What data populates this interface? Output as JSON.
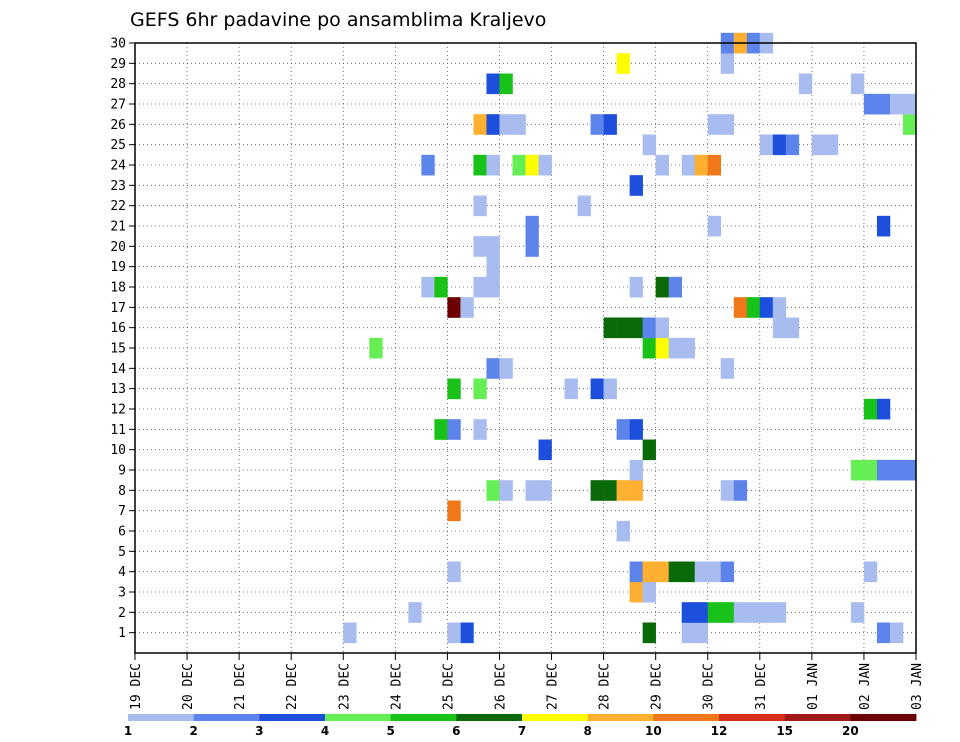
{
  "chart_data": {
    "type": "heatmap",
    "title": "GEFS 6hr padavine po ansamblima Kraljevo",
    "x_tick_labels": [
      "19 DEC",
      "20 DEC",
      "21 DEC",
      "22 DEC",
      "23 DEC",
      "24 DEC",
      "25 DEC",
      "26 DEC",
      "27 DEC",
      "28 DEC",
      "29 DEC",
      "30 DEC",
      "31 DEC",
      "01 JAN",
      "02 JAN",
      "03 JAN"
    ],
    "y_tick_labels": [
      "1",
      "2",
      "3",
      "4",
      "5",
      "6",
      "7",
      "8",
      "9",
      "10",
      "11",
      "12",
      "13",
      "14",
      "15",
      "16",
      "17",
      "18",
      "19",
      "20",
      "21",
      "22",
      "23",
      "24",
      "25",
      "26",
      "27",
      "28",
      "29",
      "30"
    ],
    "x_range_days": [
      0,
      15
    ],
    "y_range": [
      0,
      30
    ],
    "grid": "dotted",
    "legend": {
      "placement": "bottom",
      "labels": [
        "1",
        "2",
        "3",
        "4",
        "5",
        "6",
        "7",
        "8",
        "10",
        "12",
        "15",
        "20"
      ],
      "colors": [
        "#a8bcf0",
        "#5c84ea",
        "#1c4fdc",
        "#66ee55",
        "#18c218",
        "#0a6a0a",
        "#ffff00",
        "#ffb030",
        "#f07818",
        "#d83018",
        "#a01818",
        "#6c0000"
      ]
    },
    "cell_width_days": 0.25,
    "cells_note": "each cell: [start_day_from_19DEC_00UTC, member, color_index] where color_index refers to legend.colors",
    "cells": [
      [
        6.25,
        0,
        2
      ],
      [
        9.75,
        0,
        5
      ],
      [
        10.5,
        0,
        0
      ],
      [
        10.75,
        0,
        0
      ],
      [
        14.25,
        0,
        1
      ],
      [
        14.5,
        0,
        0
      ],
      [
        4.0,
        0,
        0
      ],
      [
        6.0,
        0,
        0
      ],
      [
        5.25,
        1,
        0
      ],
      [
        10.5,
        1,
        2
      ],
      [
        10.75,
        1,
        2
      ],
      [
        11.0,
        1,
        4
      ],
      [
        11.25,
        1,
        4
      ],
      [
        11.5,
        1,
        0
      ],
      [
        11.75,
        1,
        0
      ],
      [
        12.0,
        1,
        0
      ],
      [
        12.25,
        1,
        0
      ],
      [
        13.75,
        1,
        0
      ],
      [
        9.5,
        2,
        7
      ],
      [
        9.75,
        2,
        0
      ],
      [
        6.0,
        3,
        0
      ],
      [
        9.5,
        3,
        1
      ],
      [
        9.75,
        3,
        7
      ],
      [
        10.0,
        3,
        7
      ],
      [
        10.25,
        3,
        5
      ],
      [
        10.5,
        3,
        5
      ],
      [
        10.75,
        3,
        0
      ],
      [
        11.0,
        3,
        0
      ],
      [
        11.25,
        3,
        1
      ],
      [
        14.0,
        3,
        0
      ],
      [
        9.25,
        5,
        0
      ],
      [
        6.0,
        6,
        8
      ],
      [
        6.75,
        7,
        3
      ],
      [
        7.0,
        7,
        0
      ],
      [
        7.5,
        7,
        0
      ],
      [
        7.75,
        7,
        0
      ],
      [
        8.75,
        7,
        5
      ],
      [
        9.0,
        7,
        5
      ],
      [
        9.25,
        7,
        7
      ],
      [
        9.5,
        7,
        7
      ],
      [
        11.25,
        7,
        0
      ],
      [
        11.5,
        7,
        1
      ],
      [
        9.5,
        8,
        0
      ],
      [
        13.75,
        8,
        3
      ],
      [
        14.0,
        8,
        3
      ],
      [
        14.25,
        8,
        1
      ],
      [
        14.5,
        8,
        1
      ],
      [
        14.75,
        8,
        1
      ],
      [
        7.75,
        9,
        2
      ],
      [
        9.75,
        9,
        5
      ],
      [
        5.75,
        10,
        4
      ],
      [
        6.0,
        10,
        1
      ],
      [
        6.5,
        10,
        0
      ],
      [
        9.25,
        10,
        1
      ],
      [
        9.5,
        10,
        2
      ],
      [
        14.0,
        11,
        4
      ],
      [
        14.25,
        11,
        2
      ],
      [
        6.0,
        12,
        4
      ],
      [
        6.5,
        12,
        3
      ],
      [
        8.25,
        12,
        0
      ],
      [
        8.75,
        12,
        2
      ],
      [
        9.0,
        12,
        0
      ],
      [
        6.75,
        13,
        1
      ],
      [
        7.0,
        13,
        0
      ],
      [
        11.25,
        13,
        0
      ],
      [
        4.5,
        14,
        3
      ],
      [
        9.75,
        14,
        4
      ],
      [
        10.0,
        14,
        6
      ],
      [
        10.25,
        14,
        0
      ],
      [
        10.5,
        14,
        0
      ],
      [
        9.0,
        15,
        5
      ],
      [
        9.25,
        15,
        5
      ],
      [
        9.5,
        15,
        5
      ],
      [
        9.75,
        15,
        1
      ],
      [
        10.0,
        15,
        0
      ],
      [
        12.25,
        15,
        0
      ],
      [
        12.5,
        15,
        0
      ],
      [
        6.0,
        16,
        11
      ],
      [
        6.25,
        16,
        0
      ],
      [
        11.5,
        16,
        8
      ],
      [
        11.75,
        16,
        4
      ],
      [
        12.0,
        16,
        2
      ],
      [
        12.25,
        16,
        0
      ],
      [
        5.5,
        17,
        0
      ],
      [
        5.75,
        17,
        4
      ],
      [
        6.5,
        17,
        0
      ],
      [
        6.75,
        17,
        0
      ],
      [
        9.5,
        17,
        0
      ],
      [
        10.0,
        17,
        5
      ],
      [
        10.25,
        17,
        1
      ],
      [
        6.75,
        18,
        0
      ],
      [
        6.5,
        19,
        0
      ],
      [
        6.75,
        19,
        0
      ],
      [
        7.5,
        19,
        1
      ],
      [
        7.5,
        20,
        1
      ],
      [
        11.0,
        20,
        0
      ],
      [
        14.25,
        20,
        2
      ],
      [
        6.5,
        21,
        0
      ],
      [
        8.5,
        21,
        0
      ],
      [
        9.5,
        22,
        2
      ],
      [
        5.5,
        23,
        1
      ],
      [
        6.5,
        23,
        4
      ],
      [
        6.75,
        23,
        0
      ],
      [
        7.25,
        23,
        3
      ],
      [
        7.5,
        23,
        6
      ],
      [
        7.75,
        23,
        0
      ],
      [
        10.0,
        23,
        0
      ],
      [
        10.5,
        23,
        0
      ],
      [
        10.75,
        23,
        7
      ],
      [
        11.0,
        23,
        8
      ],
      [
        9.75,
        24,
        0
      ],
      [
        12.0,
        24,
        0
      ],
      [
        12.25,
        24,
        2
      ],
      [
        12.5,
        24,
        1
      ],
      [
        13.0,
        24,
        0
      ],
      [
        13.25,
        24,
        0
      ],
      [
        6.5,
        25,
        7
      ],
      [
        6.75,
        25,
        2
      ],
      [
        7.0,
        25,
        0
      ],
      [
        7.25,
        25,
        0
      ],
      [
        8.75,
        25,
        1
      ],
      [
        9.0,
        25,
        2
      ],
      [
        11.0,
        25,
        0
      ],
      [
        11.25,
        25,
        0
      ],
      [
        14.75,
        25,
        3
      ],
      [
        14.0,
        26,
        1
      ],
      [
        14.25,
        26,
        1
      ],
      [
        14.5,
        26,
        0
      ],
      [
        14.75,
        26,
        0
      ],
      [
        6.75,
        27,
        2
      ],
      [
        7.0,
        27,
        4
      ],
      [
        12.75,
        27,
        0
      ],
      [
        13.75,
        27,
        0
      ],
      [
        9.25,
        28,
        6
      ],
      [
        11.25,
        28,
        0
      ],
      [
        11.25,
        29,
        1
      ],
      [
        11.5,
        29,
        7
      ],
      [
        11.75,
        29,
        1
      ],
      [
        12.0,
        29,
        0
      ]
    ]
  }
}
